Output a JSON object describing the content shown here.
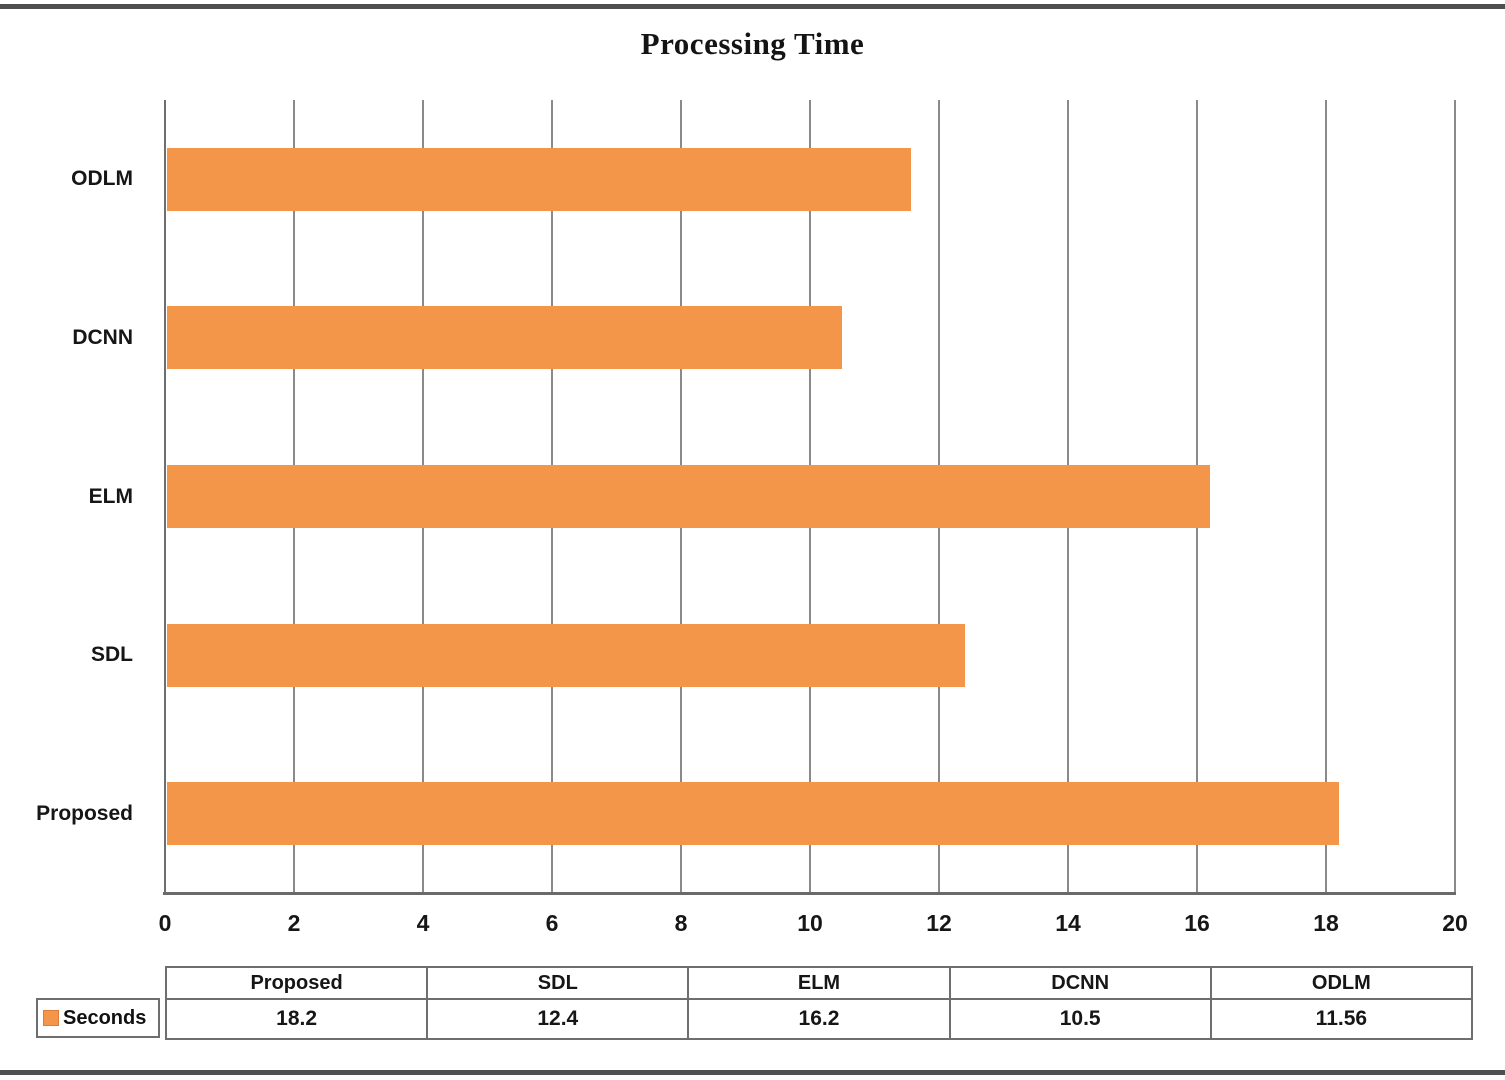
{
  "title": "Processing Time",
  "chart_data": {
    "type": "bar",
    "orientation": "horizontal",
    "title": "Processing Time",
    "categories": [
      "ODLM",
      "DCNN",
      "ELM",
      "SDL",
      "Proposed"
    ],
    "series": [
      {
        "name": "Seconds",
        "values": [
          11.56,
          10.5,
          16.2,
          12.4,
          18.2
        ]
      }
    ],
    "xlabel": "",
    "ylabel": "",
    "xlim": [
      0,
      20
    ],
    "xticks": [
      0,
      2,
      4,
      6,
      8,
      10,
      12,
      14,
      16,
      18,
      20
    ],
    "grid": "vertical-gridlines-on",
    "legend_position": "bottom-left-table",
    "bar_color": "#F4964A"
  },
  "data_table": {
    "row_header": "Seconds",
    "columns": [
      "Proposed",
      "SDL",
      "ELM",
      "DCNN",
      "ODLM"
    ],
    "values": [
      "18.2",
      "12.4",
      "16.2",
      "10.5",
      "11.56"
    ]
  },
  "colors": {
    "bar": "#F4964A",
    "legend_swatch": "#F4964A",
    "legend_swatch_border": "#E07B39",
    "gridline": "#8a8a8a",
    "axis": "#6a6a6a",
    "frame_rule": "#4f4f4f",
    "table_border": "#6e6e6e",
    "text": "#111111"
  }
}
